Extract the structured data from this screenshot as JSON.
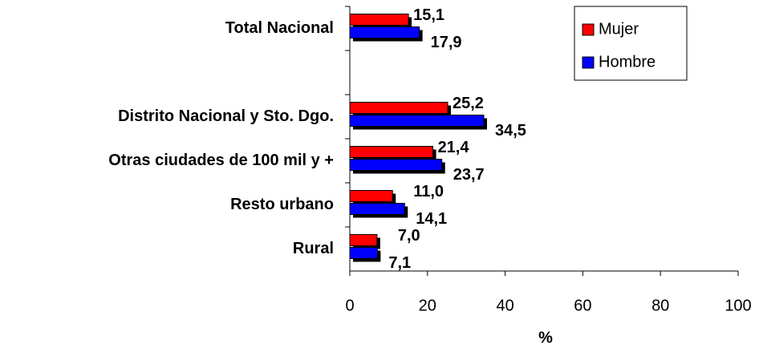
{
  "chart_data": {
    "type": "hbar",
    "x_label": "%",
    "categories": [
      "Total Nacional",
      null,
      "Distrito Nacional y Sto. Dgo.",
      "Otras ciudades de 100 mil y +",
      "Resto urbano",
      "Rural"
    ],
    "series": [
      {
        "name": "Mujer",
        "color": "#ff0000",
        "values": [
          15.1,
          null,
          25.2,
          21.4,
          11.0,
          7.0
        ],
        "value_labels": [
          "15,1",
          null,
          "25,2",
          "21,4",
          "11,0",
          "7,0"
        ]
      },
      {
        "name": "Hombre",
        "color": "#0000ff",
        "values": [
          17.9,
          null,
          34.5,
          23.7,
          14.1,
          7.1
        ],
        "value_labels": [
          "17,9",
          null,
          "34,5",
          "23,7",
          "14,1",
          "7,1"
        ]
      }
    ],
    "xlim": [
      0,
      100
    ],
    "xticks": [
      0,
      20,
      40,
      60,
      80,
      100
    ],
    "legend": "upper right",
    "shadow": true
  }
}
